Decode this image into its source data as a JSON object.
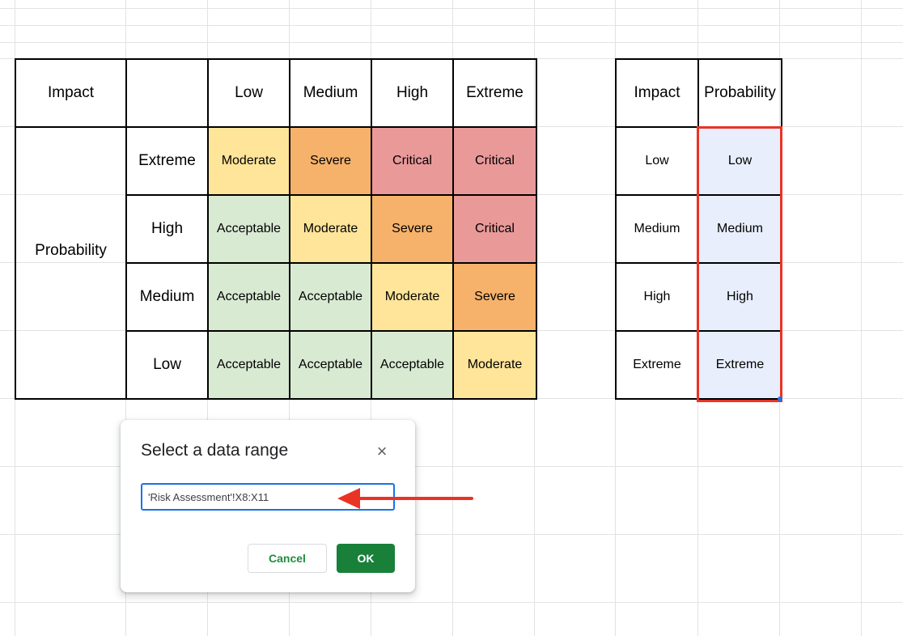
{
  "matrix": {
    "corner_label": "Impact",
    "impact_levels": [
      "Low",
      "Medium",
      "High",
      "Extreme"
    ],
    "probability_label": "Probability",
    "rows": [
      {
        "probability": "Extreme",
        "cells": [
          "Moderate",
          "Severe",
          "Critical",
          "Critical"
        ]
      },
      {
        "probability": "High",
        "cells": [
          "Acceptable",
          "Moderate",
          "Severe",
          "Critical"
        ]
      },
      {
        "probability": "Medium",
        "cells": [
          "Acceptable",
          "Acceptable",
          "Moderate",
          "Severe"
        ]
      },
      {
        "probability": "Low",
        "cells": [
          "Acceptable",
          "Acceptable",
          "Acceptable",
          "Moderate"
        ]
      }
    ],
    "level_colors": {
      "Acceptable": "#d9ead3",
      "Moderate": "#ffe599",
      "Severe": "#f6b26b",
      "Critical": "#ea9999"
    }
  },
  "lookup": {
    "headers": [
      "Impact",
      "Probability"
    ],
    "rows": [
      [
        "Low",
        "Low"
      ],
      [
        "Medium",
        "Medium"
      ],
      [
        "High",
        "High"
      ],
      [
        "Extreme",
        "Extreme"
      ]
    ],
    "selection_color": "#ea3323"
  },
  "dialog": {
    "title": "Select a data range",
    "close_icon": "close-icon",
    "range_value": "'Risk Assessment'!X8:X11",
    "cancel_label": "Cancel",
    "ok_label": "OK"
  },
  "annotation": {
    "arrow_icon": "arrow-left-icon",
    "arrow_color": "#ea3323"
  }
}
